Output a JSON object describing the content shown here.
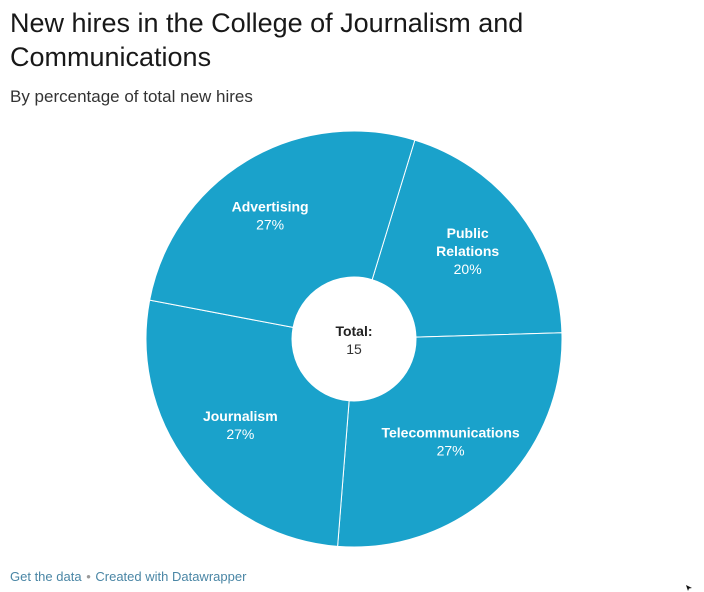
{
  "chart_data": {
    "type": "pie",
    "variant": "donut",
    "title": "New hires in the College of Journalism and Communications",
    "subtitle": "By percentage of total new hires",
    "center_label": "Total:",
    "center_value": "15",
    "slice_color": "#1aa2cb",
    "separator_color": "#ffffff",
    "label_color": "#ffffff",
    "slices": [
      {
        "name": "Public Relations",
        "label_lines": [
          "Public",
          "Relations"
        ],
        "value": 20,
        "value_label": "20%"
      },
      {
        "name": "Telecommunications",
        "label_lines": [
          "Telecommunications"
        ],
        "value": 27,
        "value_label": "27%"
      },
      {
        "name": "Journalism",
        "label_lines": [
          "Journalism"
        ],
        "value": 27,
        "value_label": "27%"
      },
      {
        "name": "Advertising",
        "label_lines": [
          "Advertising"
        ],
        "value": 27,
        "value_label": "27%"
      }
    ]
  },
  "footer": {
    "get_data": "Get the data",
    "separator": "•",
    "created_with": "Created with Datawrapper"
  }
}
